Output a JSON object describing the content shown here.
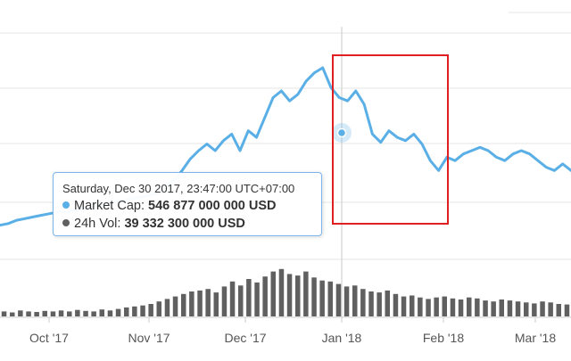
{
  "colors": {
    "market_cap_line": "#5aafe6",
    "volume_bars": "#606060",
    "highlight_box": "#e02020",
    "crosshair": "#c8c8c8",
    "gridline": "#e6e6e6",
    "tooltip_border": "#7cb5ec",
    "volume_dot": "#606060"
  },
  "chart_data": {
    "type": "line",
    "x_axis": {
      "ticks": [
        "Oct '17",
        "Nov '17",
        "Dec '17",
        "Jan '18",
        "Feb '18",
        "Mar '18"
      ]
    },
    "y_axis": {
      "labels_visible": false,
      "grid": true
    },
    "series": [
      {
        "name": "Market Cap",
        "type": "line",
        "values_relative": [
          0.05,
          0.06,
          0.08,
          0.09,
          0.1,
          0.11,
          0.12,
          0.13,
          0.13,
          0.14,
          0.15,
          0.16,
          0.17,
          0.18,
          0.19,
          0.2,
          0.21,
          0.22,
          0.23,
          0.24,
          0.28,
          0.32,
          0.38,
          0.45,
          0.5,
          0.54,
          0.5,
          0.56,
          0.6,
          0.5,
          0.62,
          0.58,
          0.7,
          0.82,
          0.86,
          0.8,
          0.84,
          0.92,
          0.97,
          1.0,
          0.88,
          0.82,
          0.8,
          0.86,
          0.78,
          0.6,
          0.55,
          0.62,
          0.58,
          0.56,
          0.6,
          0.54,
          0.44,
          0.38,
          0.46,
          0.44,
          0.48,
          0.5,
          0.52,
          0.5,
          0.46,
          0.44,
          0.48,
          0.5,
          0.48,
          0.44,
          0.4,
          0.38,
          0.42,
          0.38
        ]
      },
      {
        "name": "24h Vol",
        "type": "bar",
        "values_relative": [
          0.1,
          0.08,
          0.12,
          0.1,
          0.09,
          0.11,
          0.1,
          0.12,
          0.1,
          0.13,
          0.11,
          0.1,
          0.14,
          0.12,
          0.15,
          0.18,
          0.2,
          0.22,
          0.25,
          0.3,
          0.35,
          0.4,
          0.45,
          0.5,
          0.52,
          0.55,
          0.48,
          0.6,
          0.7,
          0.62,
          0.75,
          0.68,
          0.8,
          0.9,
          0.95,
          0.85,
          0.82,
          0.9,
          0.78,
          0.72,
          0.7,
          0.65,
          0.6,
          0.62,
          0.55,
          0.5,
          0.48,
          0.52,
          0.45,
          0.4,
          0.42,
          0.38,
          0.35,
          0.38,
          0.4,
          0.36,
          0.34,
          0.38,
          0.36,
          0.32,
          0.3,
          0.34,
          0.32,
          0.3,
          0.28,
          0.26,
          0.3,
          0.28,
          0.25,
          0.24
        ]
      }
    ],
    "highlight_region": {
      "from": "Jan '18",
      "to": "Feb '18"
    }
  },
  "tooltip": {
    "date": "Saturday, Dec 30 2017, 23:47:00 UTC+07:00",
    "market_cap_label": "Market Cap:",
    "market_cap_value": "546 877 000 000 USD",
    "vol_label": "24h Vol:",
    "vol_value": "39 332 300 000 USD"
  }
}
